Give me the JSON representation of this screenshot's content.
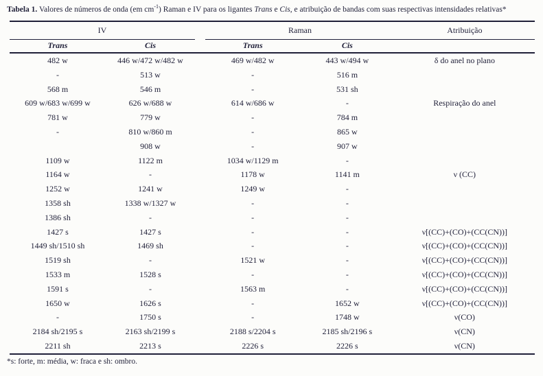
{
  "page": {
    "background": "#fcfcfa",
    "ink": "#1f1f38"
  },
  "title": {
    "bold": "Tabela 1.",
    "part1": " Valores de números de onda (em cm",
    "sup": "-1",
    "part2": ") Raman e IV para os ligantes ",
    "italic1": "Trans",
    "part3": " e ",
    "italic2": "Cis",
    "part4": ", e atribuição de bandas com suas respectivas intensidades relativas*"
  },
  "table": {
    "groups": {
      "iv": "IV",
      "raman": "Raman",
      "atribuicao": "Atribuição"
    },
    "subheaders": {
      "iv_trans": "Trans",
      "iv_cis": "Cis",
      "raman_trans": "Trans",
      "raman_cis": "Cis"
    },
    "rows": [
      {
        "iv_trans": "482 w",
        "iv_cis": "446 w/472 w/482 w",
        "raman_trans": "469 w/482 w",
        "raman_cis": "443 w/494 w",
        "atribuicao": "δ do anel no plano"
      },
      {
        "iv_trans": "-",
        "iv_cis": "513 w",
        "raman_trans": "-",
        "raman_cis": "516 m",
        "atribuicao": ""
      },
      {
        "iv_trans": "568 m",
        "iv_cis": "546 m",
        "raman_trans": "-",
        "raman_cis": "531 sh",
        "atribuicao": ""
      },
      {
        "iv_trans": "609 w/683 w/699 w",
        "iv_cis": "626 w/688 w",
        "raman_trans": "614 w/686 w",
        "raman_cis": "-",
        "atribuicao": "Respiração do anel"
      },
      {
        "iv_trans": "781 w",
        "iv_cis": "779 w",
        "raman_trans": "-",
        "raman_cis": "784 m",
        "atribuicao": ""
      },
      {
        "iv_trans": "-",
        "iv_cis": "810 w/860 m",
        "raman_trans": "-",
        "raman_cis": "865 w",
        "atribuicao": ""
      },
      {
        "iv_trans": "",
        "iv_cis": "908 w",
        "raman_trans": "-",
        "raman_cis": "907 w",
        "atribuicao": ""
      },
      {
        "iv_trans": "1109 w",
        "iv_cis": "1122 m",
        "raman_trans": "1034 w/1129 m",
        "raman_cis": "-",
        "atribuicao": ""
      },
      {
        "iv_trans": "1164 w",
        "iv_cis": "-",
        "raman_trans": "1178 w",
        "raman_cis": "1141 m",
        "atribuicao": "ν (CC)"
      },
      {
        "iv_trans": "1252 w",
        "iv_cis": "1241 w",
        "raman_trans": "1249 w",
        "raman_cis": "-",
        "atribuicao": ""
      },
      {
        "iv_trans": "1358 sh",
        "iv_cis": "1338 w/1327 w",
        "raman_trans": "-",
        "raman_cis": "-",
        "atribuicao": ""
      },
      {
        "iv_trans": "1386 sh",
        "iv_cis": "-",
        "raman_trans": "-",
        "raman_cis": "-",
        "atribuicao": ""
      },
      {
        "iv_trans": "1427 s",
        "iv_cis": "1427 s",
        "raman_trans": "-",
        "raman_cis": "-",
        "atribuicao": "ν[(CC)+(CO)+(CC(CN))]"
      },
      {
        "iv_trans": "1449 sh/1510 sh",
        "iv_cis": "1469 sh",
        "raman_trans": "-",
        "raman_cis": "-",
        "atribuicao": "ν[(CC)+(CO)+(CC(CN))]"
      },
      {
        "iv_trans": "1519 sh",
        "iv_cis": "-",
        "raman_trans": "1521 w",
        "raman_cis": "-",
        "atribuicao": "ν[(CC)+(CO)+(CC(CN))]"
      },
      {
        "iv_trans": "1533 m",
        "iv_cis": "1528 s",
        "raman_trans": "-",
        "raman_cis": "-",
        "atribuicao": "ν[(CC)+(CO)+(CC(CN))]"
      },
      {
        "iv_trans": "1591 s",
        "iv_cis": "-",
        "raman_trans": "1563 m",
        "raman_cis": "-",
        "atribuicao": "ν[(CC)+(CO)+(CC(CN))]"
      },
      {
        "iv_trans": "1650 w",
        "iv_cis": "1626 s",
        "raman_trans": "-",
        "raman_cis": "1652 w",
        "atribuicao": "ν[(CC)+(CO)+(CC(CN))]"
      },
      {
        "iv_trans": "-",
        "iv_cis": "1750 s",
        "raman_trans": "-",
        "raman_cis": "1748 w",
        "atribuicao": "ν(CO)"
      },
      {
        "iv_trans": "2184 sh/2195 s",
        "iv_cis": "2163 sh/2199 s",
        "raman_trans": "2188 s/2204 s",
        "raman_cis": "2185 sh/2196 s",
        "atribuicao": "ν(CN)"
      },
      {
        "iv_trans": "2211 sh",
        "iv_cis": "2213 s",
        "raman_trans": "2226 s",
        "raman_cis": "2226 s",
        "atribuicao": "ν(CN)"
      }
    ]
  },
  "footnote": "*s: forte, m: média, w: fraca e sh: ombro."
}
